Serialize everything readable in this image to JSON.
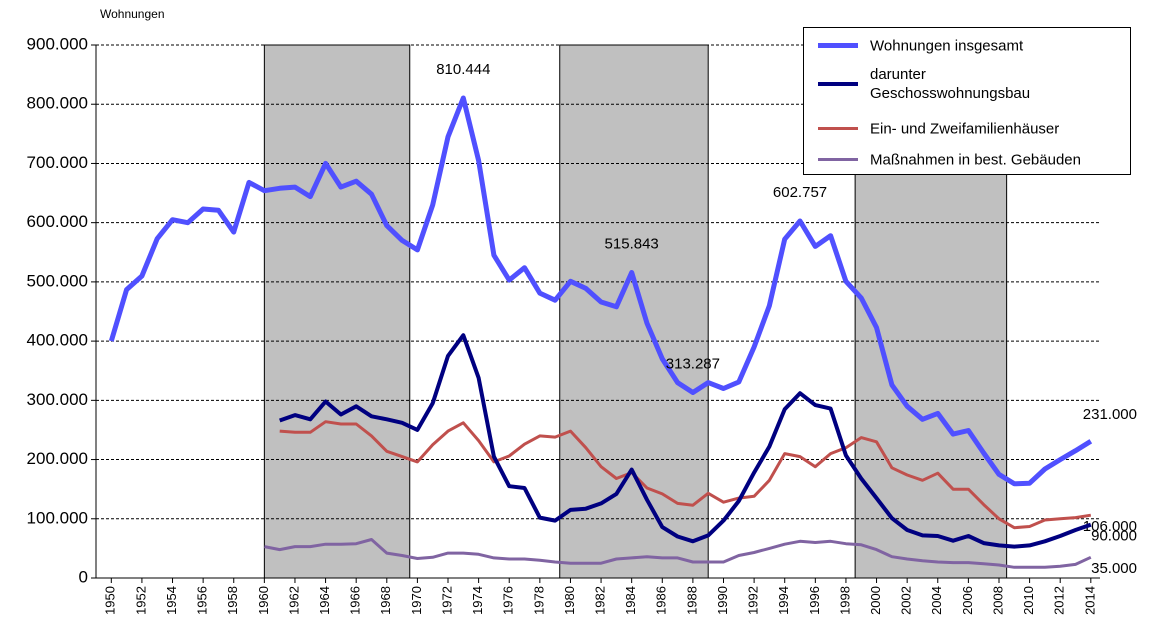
{
  "chart_data": {
    "type": "line",
    "y_axis_label": "Wohnungen",
    "x": [
      1950,
      1951,
      1952,
      1953,
      1954,
      1955,
      1956,
      1957,
      1958,
      1959,
      1960,
      1961,
      1962,
      1963,
      1964,
      1965,
      1966,
      1967,
      1968,
      1969,
      1970,
      1971,
      1972,
      1973,
      1974,
      1975,
      1976,
      1977,
      1978,
      1979,
      1980,
      1981,
      1982,
      1983,
      1984,
      1985,
      1986,
      1987,
      1988,
      1989,
      1990,
      1991,
      1992,
      1993,
      1994,
      1995,
      1996,
      1997,
      1998,
      1999,
      2000,
      2001,
      2002,
      2003,
      2004,
      2005,
      2006,
      2007,
      2008,
      2009,
      2010,
      2011,
      2012,
      2013,
      2014
    ],
    "xlim": [
      1949,
      2014.6
    ],
    "xticks": [
      1950,
      1952,
      1954,
      1956,
      1958,
      1960,
      1962,
      1964,
      1966,
      1968,
      1970,
      1972,
      1974,
      1976,
      1978,
      1980,
      1982,
      1984,
      1986,
      1988,
      1990,
      1992,
      1994,
      1996,
      1998,
      2000,
      2002,
      2004,
      2006,
      2008,
      2010,
      2012,
      2014
    ],
    "ylim": [
      0,
      900000
    ],
    "yticks": [
      {
        "value": 0,
        "label": "0"
      },
      {
        "value": 100000,
        "label": "100.000"
      },
      {
        "value": 200000,
        "label": "200.000"
      },
      {
        "value": 300000,
        "label": "300.000"
      },
      {
        "value": 400000,
        "label": "400.000"
      },
      {
        "value": 500000,
        "label": "500.000"
      },
      {
        "value": 600000,
        "label": "600.000"
      },
      {
        "value": 700000,
        "label": "700.000"
      },
      {
        "value": 800000,
        "label": "800.000"
      },
      {
        "value": 900000,
        "label": "900.000"
      }
    ],
    "grid": true,
    "shaded_ranges": [
      [
        1960,
        1969.5
      ],
      [
        1979.3,
        1989
      ],
      [
        1998.6,
        2008.5
      ]
    ],
    "shade_color": "#c0c0c0",
    "legend": "upper right",
    "series": [
      {
        "name": "Wohnungen insgesamt",
        "color": "#5050ff",
        "width": 5,
        "values": [
          400000,
          487000,
          510000,
          573000,
          605000,
          600000,
          623000,
          621000,
          584000,
          668000,
          654000,
          658000,
          660000,
          644000,
          700000,
          660000,
          670000,
          648000,
          595000,
          570000,
          554000,
          630000,
          745000,
          810444,
          705000,
          545000,
          503000,
          524000,
          481000,
          469000,
          501000,
          489000,
          466000,
          458000,
          515843,
          430000,
          370000,
          330000,
          313287,
          330000,
          320000,
          331000,
          390000,
          460000,
          572000,
          602757,
          560000,
          578000,
          501000,
          473000,
          423000,
          326000,
          290000,
          268000,
          278000,
          243000,
          249000,
          211000,
          175000,
          159000,
          160000,
          184000,
          200000,
          215000,
          231000
        ],
        "value_labels": [
          null,
          null,
          null,
          null,
          null,
          null,
          null,
          null,
          null,
          null,
          null,
          null,
          null,
          null,
          null,
          null,
          null,
          null,
          null,
          null,
          null,
          null,
          null,
          "810.444",
          null,
          null,
          null,
          null,
          null,
          null,
          null,
          null,
          null,
          null,
          "515.843",
          null,
          null,
          null,
          "313.287",
          null,
          null,
          null,
          null,
          null,
          null,
          "602.757",
          null,
          null,
          null,
          null,
          null,
          null,
          null,
          null,
          null,
          null,
          null,
          null,
          null,
          null,
          null,
          null,
          null,
          null,
          "231.000"
        ]
      },
      {
        "name": "darunter\nGeschosswohnungsbau",
        "color": "#000080",
        "width": 4,
        "values": [
          null,
          null,
          null,
          null,
          null,
          null,
          null,
          null,
          null,
          null,
          null,
          266000,
          275000,
          268000,
          298000,
          276000,
          290000,
          273000,
          268000,
          262000,
          250000,
          295000,
          375000,
          410000,
          338000,
          205000,
          155000,
          152000,
          102000,
          97000,
          115000,
          117000,
          126000,
          142000,
          183000,
          132000,
          86000,
          70000,
          62000,
          72000,
          97000,
          130000,
          178000,
          222000,
          285000,
          312000,
          292000,
          286000,
          207000,
          168000,
          135000,
          101000,
          81000,
          72000,
          71000,
          63000,
          71000,
          59000,
          55000,
          53000,
          55000,
          62000,
          71000,
          81000,
          90000
        ],
        "value_labels": [
          null,
          null,
          null,
          null,
          null,
          null,
          null,
          null,
          null,
          null,
          null,
          null,
          null,
          null,
          null,
          null,
          null,
          null,
          null,
          null,
          null,
          null,
          null,
          null,
          null,
          null,
          null,
          null,
          null,
          null,
          null,
          null,
          null,
          null,
          null,
          null,
          null,
          null,
          null,
          null,
          null,
          null,
          null,
          null,
          null,
          null,
          null,
          null,
          null,
          null,
          null,
          null,
          null,
          null,
          null,
          null,
          null,
          null,
          null,
          null,
          null,
          null,
          null,
          null,
          "90.000"
        ]
      },
      {
        "name": "Ein- und Zweifamilienhäuser",
        "color": "#c0504d",
        "width": 3,
        "values": [
          null,
          null,
          null,
          null,
          null,
          null,
          null,
          null,
          null,
          null,
          null,
          248000,
          246000,
          246000,
          264000,
          260000,
          260000,
          240000,
          214000,
          205000,
          196000,
          225000,
          248000,
          262000,
          232000,
          196000,
          206000,
          226000,
          240000,
          238000,
          248000,
          220000,
          188000,
          168000,
          178000,
          152000,
          142000,
          126000,
          123000,
          143000,
          128000,
          135000,
          138000,
          165000,
          210000,
          205000,
          188000,
          210000,
          220000,
          237000,
          230000,
          186000,
          174000,
          165000,
          177000,
          150000,
          150000,
          124000,
          100000,
          85000,
          87000,
          98000,
          100000,
          102000,
          106000
        ],
        "value_labels": [
          null,
          null,
          null,
          null,
          null,
          null,
          null,
          null,
          null,
          null,
          null,
          null,
          null,
          null,
          null,
          null,
          null,
          null,
          null,
          null,
          null,
          null,
          null,
          null,
          null,
          null,
          null,
          null,
          null,
          null,
          null,
          null,
          null,
          null,
          null,
          null,
          null,
          null,
          null,
          null,
          null,
          null,
          null,
          null,
          null,
          null,
          null,
          null,
          null,
          null,
          null,
          null,
          null,
          null,
          null,
          null,
          null,
          null,
          null,
          null,
          null,
          null,
          null,
          null,
          "106.000"
        ]
      },
      {
        "name": "Maßnahmen in best. Gebäuden",
        "color": "#8064a2",
        "width": 3,
        "values": [
          null,
          null,
          null,
          null,
          null,
          null,
          null,
          null,
          null,
          null,
          53000,
          48000,
          53000,
          53000,
          57000,
          57000,
          58000,
          65000,
          42000,
          38000,
          33000,
          35000,
          42000,
          42000,
          40000,
          34000,
          32000,
          32000,
          30000,
          27000,
          25000,
          25000,
          25000,
          32000,
          34000,
          36000,
          34000,
          34000,
          27000,
          27000,
          27000,
          38000,
          43000,
          50000,
          57000,
          62000,
          60000,
          62000,
          58000,
          56000,
          48000,
          36000,
          32000,
          29000,
          27000,
          26000,
          26000,
          24000,
          22000,
          18000,
          18000,
          18000,
          20000,
          23000,
          35000
        ],
        "value_labels": [
          null,
          null,
          null,
          null,
          null,
          null,
          null,
          null,
          null,
          null,
          null,
          null,
          null,
          null,
          null,
          null,
          null,
          null,
          null,
          null,
          null,
          null,
          null,
          null,
          null,
          null,
          null,
          null,
          null,
          null,
          null,
          null,
          null,
          null,
          null,
          null,
          null,
          null,
          null,
          null,
          null,
          null,
          null,
          null,
          null,
          null,
          null,
          null,
          null,
          null,
          null,
          null,
          null,
          null,
          null,
          null,
          null,
          null,
          null,
          null,
          null,
          null,
          null,
          null,
          "35.000"
        ]
      }
    ]
  }
}
